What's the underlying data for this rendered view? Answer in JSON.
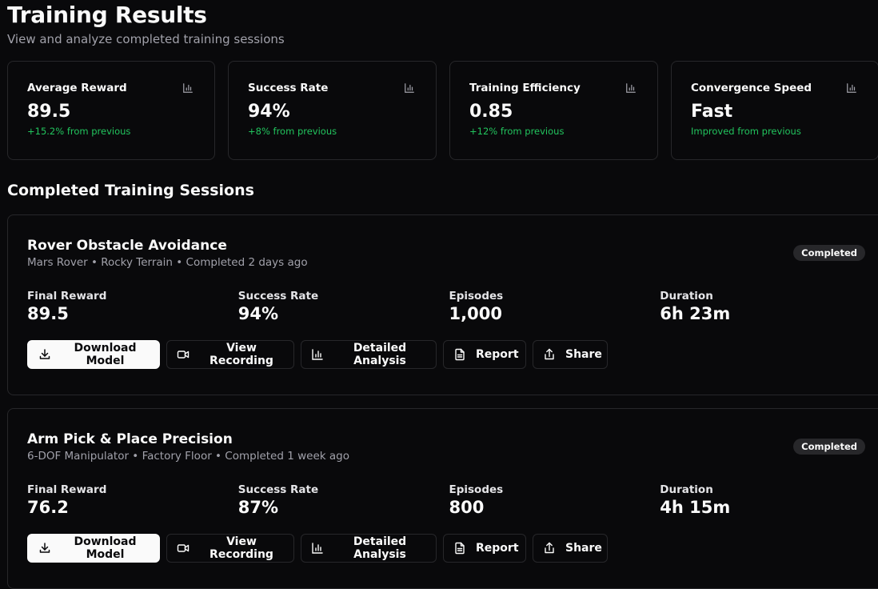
{
  "header": {
    "title": "Training Results",
    "subtitle": "View and analyze completed training sessions"
  },
  "stats": [
    {
      "label": "Average Reward",
      "value": "89.5",
      "delta": "+15.2% from previous",
      "icon": "bar-chart-icon"
    },
    {
      "label": "Success Rate",
      "value": "94%",
      "delta": "+8% from previous",
      "icon": "bar-chart-icon"
    },
    {
      "label": "Training Efficiency",
      "value": "0.85",
      "delta": "+12% from previous",
      "icon": "bar-chart-icon"
    },
    {
      "label": "Convergence Speed",
      "value": "Fast",
      "delta": "Improved from previous",
      "icon": "bar-chart-icon"
    }
  ],
  "section_title": "Completed Training Sessions",
  "sessions": [
    {
      "title": "Rover Obstacle Avoidance",
      "meta": "Mars Rover • Rocky Terrain • Completed 2 days ago",
      "status": "Completed",
      "metrics": [
        {
          "label": "Final Reward",
          "value": "89.5"
        },
        {
          "label": "Success Rate",
          "value": "94%"
        },
        {
          "label": "Episodes",
          "value": "1,000"
        },
        {
          "label": "Duration",
          "value": "6h 23m"
        }
      ]
    },
    {
      "title": "Arm Pick & Place Precision",
      "meta": "6-DOF Manipulator • Factory Floor • Completed 1 week ago",
      "status": "Completed",
      "metrics": [
        {
          "label": "Final Reward",
          "value": "76.2"
        },
        {
          "label": "Success Rate",
          "value": "87%"
        },
        {
          "label": "Episodes",
          "value": "800"
        },
        {
          "label": "Duration",
          "value": "4h 15m"
        }
      ]
    }
  ],
  "actions": {
    "download": "Download Model",
    "recording": "View Recording",
    "analysis": "Detailed Analysis",
    "report": "Report",
    "share": "Share"
  },
  "colors": {
    "background": "#09090b",
    "border": "#27272a",
    "positive": "#22c55e",
    "muted_text": "#a1a1aa"
  }
}
